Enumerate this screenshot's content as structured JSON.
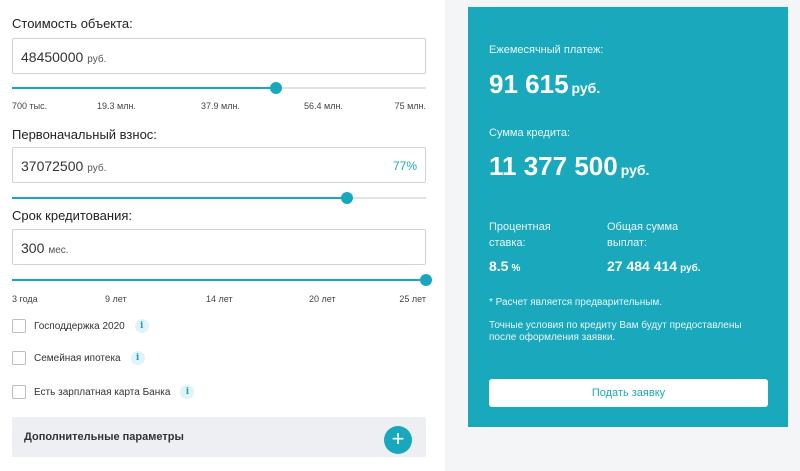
{
  "calculator": {
    "property_cost": {
      "label": "Стоимость объекта:",
      "value": "48450000",
      "unit": "руб.",
      "slider_fraction": 0.638,
      "ticks": [
        "700 тыс.",
        "19.3 млн.",
        "37.9 млн.",
        "56.4 млн.",
        "75 млн."
      ]
    },
    "down_payment": {
      "label": "Первоначальный взнос:",
      "value": "37072500",
      "unit": "руб.",
      "percent": "77%",
      "slider_fraction": 0.81
    },
    "term": {
      "label": "Срок кредитования:",
      "value": "300",
      "unit": "мес.",
      "slider_fraction": 1.0,
      "ticks": [
        "3 года",
        "9 лет",
        "14 лет",
        "20 лет",
        "25 лет"
      ]
    },
    "options": [
      {
        "label": "Господдержка 2020",
        "checked": false
      },
      {
        "label": "Семейная ипотека",
        "checked": false
      },
      {
        "label": "Есть зарплатная карта Банка",
        "checked": false
      }
    ],
    "info_glyph": "i",
    "extra_params_label": "Дополнительные параметры",
    "plus_glyph": "+"
  },
  "results": {
    "monthly_label": "Ежемесячный платеж:",
    "monthly_value": "91 615",
    "loan_label": "Сумма кредита:",
    "loan_value": "11 377 500",
    "currency": "руб.",
    "rate_label_line1": "Процентная",
    "rate_label_line2": "ставка:",
    "rate_value": "8.5",
    "rate_unit": "%",
    "total_label_line1": "Общая сумма",
    "total_label_line2": "выплат:",
    "total_value": "27 484 414",
    "note1": "* Расчет является предварительным.",
    "note2_line1": "Точные условия по кредиту Вам будут предоставлены",
    "note2_line2": "после оформления заявки.",
    "apply_button": "Подать заявку"
  },
  "colors": {
    "accent": "#1aa8bc",
    "track": "#dfe3e6"
  }
}
